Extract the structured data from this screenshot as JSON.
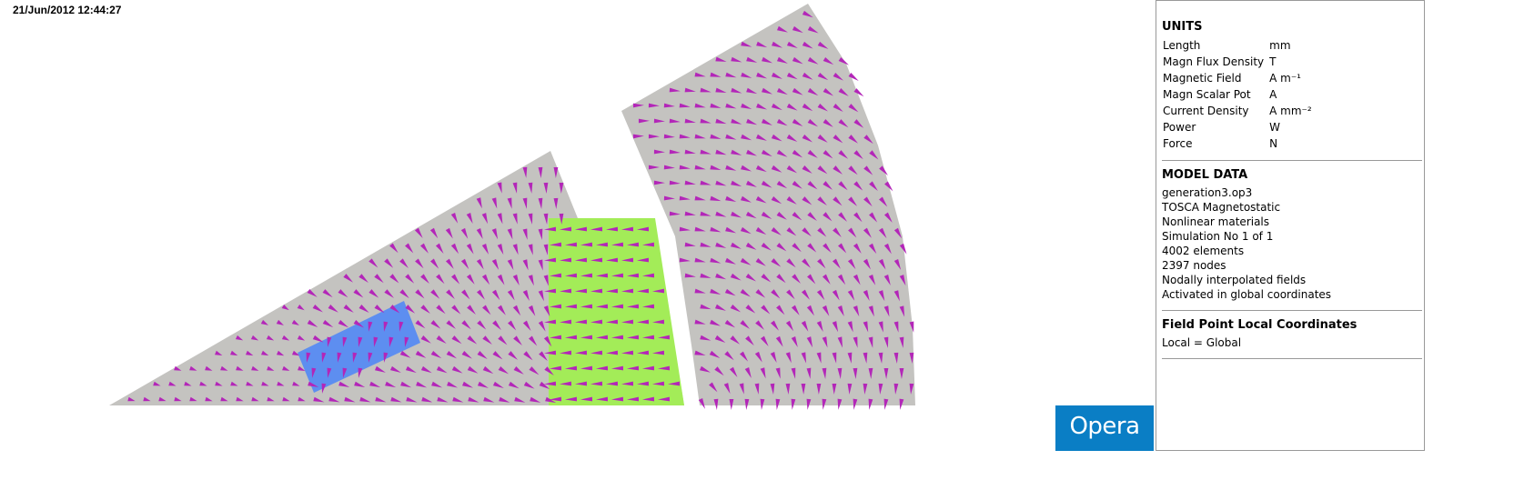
{
  "timestamp": "21/Jun/2012 12:44:27",
  "colors": {
    "body": "#c4c3c0",
    "conductor": "#5d8ef0",
    "core": "#a3ec58",
    "arrows": "#b326b8"
  },
  "units": {
    "title": "UNITS",
    "rows": [
      {
        "label": "Length",
        "value": "mm"
      },
      {
        "label": "Magn Flux Density",
        "value": "T"
      },
      {
        "label": "Magnetic Field",
        "value": "A m⁻¹"
      },
      {
        "label": "Magn Scalar Pot",
        "value": "A"
      },
      {
        "label": "Current Density",
        "value": "A mm⁻²"
      },
      {
        "label": "Power",
        "value": "W"
      },
      {
        "label": "Force",
        "value": "N"
      }
    ]
  },
  "model_data": {
    "title": "MODEL DATA",
    "lines": [
      "generation3.op3",
      "TOSCA Magnetostatic",
      "Nonlinear materials",
      "Simulation No 1 of 1",
      "4002 elements",
      "2397 nodes",
      "Nodally interpolated fields",
      "Activated in global coordinates"
    ]
  },
  "field_point": {
    "title": "Field Point Local Coordinates",
    "value": "Local = Global"
  },
  "logo": {
    "text": "Opera"
  }
}
